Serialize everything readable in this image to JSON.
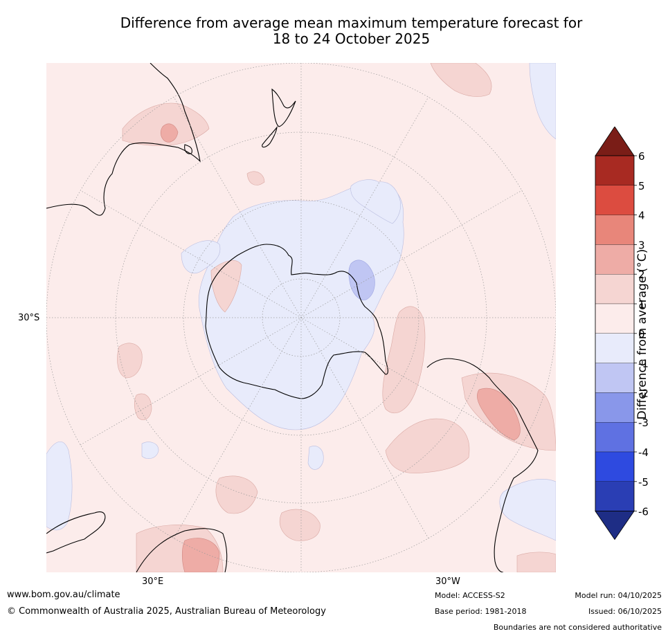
{
  "title": {
    "line1": "Difference from average mean maximum temperature forecast for",
    "line2": "18 to 24 October 2025"
  },
  "map": {
    "lat_label": "30°S",
    "lon_labels": {
      "east": "30°E",
      "west": "30°W"
    }
  },
  "colorbar": {
    "title": "Difference from average (°C)",
    "ticks": [
      "6",
      "5",
      "4",
      "3",
      "2",
      "1",
      "0",
      "-1",
      "-2",
      "-3",
      "-4",
      "-5",
      "-6"
    ],
    "bins": [
      {
        "range": "5 to 6",
        "color": "#a82a22"
      },
      {
        "range": "4 to 5",
        "color": "#dc4c40"
      },
      {
        "range": "3 to 4",
        "color": "#e8867a"
      },
      {
        "range": "2 to 3",
        "color": "#eeaca6"
      },
      {
        "range": "1 to 2",
        "color": "#f5d5d2"
      },
      {
        "range": "0 to 1",
        "color": "#fceceb"
      },
      {
        "range": "-1 to 0",
        "color": "#e8ebfb"
      },
      {
        "range": "-2 to -1",
        "color": "#c0c6f3"
      },
      {
        "range": "-3 to -2",
        "color": "#8997ea"
      },
      {
        "range": "-4 to -3",
        "color": "#5f71e2"
      },
      {
        "range": "-5 to -4",
        "color": "#2e4ae0"
      },
      {
        "range": "-6 to -5",
        "color": "#2a3eb4"
      }
    ],
    "over_color": "#7a1d17",
    "under_color": "#1e2d85"
  },
  "footer": {
    "website": "www.bom.gov.au/climate",
    "copyright": "© Commonwealth of Australia 2025, Australian Bureau of Meteorology",
    "model": "Model: ACCESS-S2",
    "base_period": "Base period: 1981-2018",
    "model_run": "Model run: 04/10/2025",
    "issued": "Issued: 06/10/2025",
    "disclaimer": "Boundaries are not considered authoritative"
  }
}
